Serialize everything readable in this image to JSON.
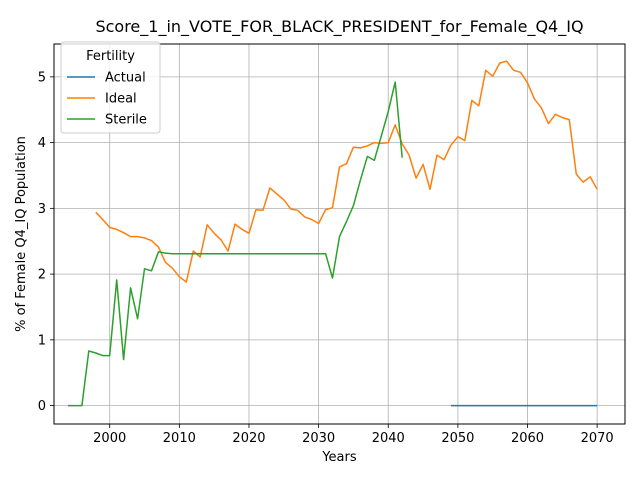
{
  "chart_data": {
    "type": "line",
    "title": "Score_1_in_VOTE_FOR_BLACK_PRESIDENT_for_Female_Q4_IQ",
    "xlabel": "Years",
    "ylabel": "% of Female Q4_IQ Population",
    "xlim": [
      1992,
      2074
    ],
    "ylim": [
      -0.28,
      5.5
    ],
    "xticks": [
      2000,
      2010,
      2020,
      2030,
      2040,
      2050,
      2060,
      2070
    ],
    "yticks": [
      0,
      1,
      2,
      3,
      4,
      5
    ],
    "grid": true,
    "legend": {
      "title": "Fertility",
      "position": "top-left"
    },
    "series": [
      {
        "name": "Actual",
        "color": "#1f77b4",
        "x": [
          2049,
          2050,
          2055,
          2060,
          2065,
          2070
        ],
        "y": [
          0,
          0,
          0,
          0,
          0,
          0
        ]
      },
      {
        "name": "Ideal",
        "color": "#ff7f0e",
        "x": [
          1998,
          1999,
          2000,
          2001,
          2002,
          2003,
          2004,
          2005,
          2006,
          2007,
          2008,
          2009,
          2010,
          2011,
          2012,
          2013,
          2014,
          2015,
          2016,
          2017,
          2018,
          2019,
          2020,
          2021,
          2022,
          2023,
          2024,
          2025,
          2026,
          2027,
          2028,
          2029,
          2030,
          2031,
          2032,
          2033,
          2034,
          2035,
          2036,
          2037,
          2038,
          2039,
          2040,
          2041,
          2042,
          2043,
          2044,
          2045,
          2046,
          2047,
          2048,
          2049,
          2050,
          2051,
          2052,
          2053,
          2054,
          2055,
          2056,
          2057,
          2058,
          2059,
          2060,
          2061,
          2062,
          2063,
          2064,
          2065,
          2066,
          2067,
          2068,
          2069,
          2070
        ],
        "y": [
          2.94,
          2.83,
          2.71,
          2.68,
          2.63,
          2.57,
          2.57,
          2.55,
          2.51,
          2.41,
          2.18,
          2.09,
          1.96,
          1.88,
          2.35,
          2.26,
          2.75,
          2.62,
          2.52,
          2.35,
          2.76,
          2.68,
          2.62,
          2.98,
          2.97,
          3.31,
          3.22,
          3.13,
          2.99,
          2.97,
          2.87,
          2.83,
          2.77,
          2.98,
          3.01,
          3.63,
          3.68,
          3.93,
          3.92,
          3.95,
          4.0,
          3.99,
          4.0,
          4.27,
          3.98,
          3.81,
          3.46,
          3.67,
          3.29,
          3.81,
          3.74,
          3.96,
          4.09,
          4.03,
          4.64,
          4.56,
          5.1,
          5.01,
          5.21,
          5.24,
          5.1,
          5.07,
          4.91,
          4.66,
          4.53,
          4.29,
          4.43,
          4.38,
          4.35,
          3.52,
          3.4,
          3.48,
          3.29
        ]
      },
      {
        "name": "Sterile",
        "color": "#2ca02c",
        "x": [
          1994,
          1995,
          1996,
          1997,
          1998,
          1999,
          2000,
          2001,
          2002,
          2003,
          2004,
          2005,
          2006,
          2007,
          2008,
          2009,
          2010,
          2020,
          2030,
          2031,
          2032,
          2033,
          2034,
          2035,
          2036,
          2037,
          2038,
          2039,
          2040,
          2041,
          2042
        ],
        "y": [
          0.0,
          0.0,
          0.0,
          0.83,
          0.8,
          0.76,
          0.76,
          1.91,
          0.7,
          1.79,
          1.32,
          2.08,
          2.05,
          2.34,
          2.32,
          2.31,
          2.31,
          2.31,
          2.31,
          2.31,
          1.94,
          2.57,
          2.8,
          3.04,
          3.43,
          3.79,
          3.73,
          4.1,
          4.47,
          4.92,
          3.77
        ]
      }
    ]
  }
}
